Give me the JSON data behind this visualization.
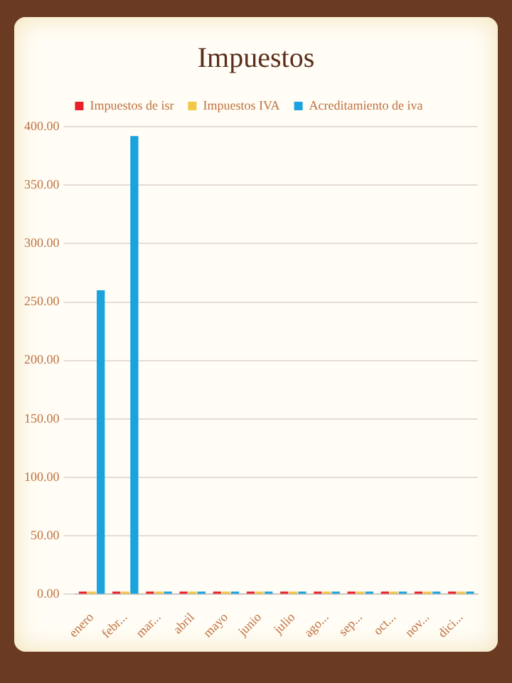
{
  "chart_data": {
    "type": "bar",
    "title": "Impuestos",
    "categories": [
      "enero",
      "febr...",
      "mar...",
      "abril",
      "mayo",
      "junio",
      "julio",
      "ago...",
      "sep...",
      "oct...",
      "nov...",
      "dici..."
    ],
    "series": [
      {
        "name": "Impuestos de isr",
        "color": "#e8202a",
        "values": [
          0,
          0,
          0,
          0,
          0,
          0,
          0,
          0,
          0,
          0,
          0,
          0
        ]
      },
      {
        "name": "Impuestos IVA",
        "color": "#f2c744",
        "values": [
          0,
          0,
          0,
          0,
          0,
          0,
          0,
          0,
          0,
          0,
          0,
          0
        ]
      },
      {
        "name": "Acreditamiento de iva",
        "color": "#1aa3dc",
        "values": [
          260,
          392,
          0,
          0,
          0,
          0,
          0,
          0,
          0,
          0,
          0,
          0
        ]
      }
    ],
    "ylim": [
      0,
      400
    ],
    "yticks": [
      {
        "value": 0,
        "label": "0.00"
      },
      {
        "value": 50,
        "label": "50.00"
      },
      {
        "value": 100,
        "label": "100.00"
      },
      {
        "value": 150,
        "label": "150.00"
      },
      {
        "value": 200,
        "label": "200.00"
      },
      {
        "value": 250,
        "label": "250.00"
      },
      {
        "value": 300,
        "label": "300.00"
      },
      {
        "value": 350,
        "label": "350.00"
      },
      {
        "value": 400,
        "label": "400.00"
      }
    ],
    "grid": "y",
    "legend": "top"
  }
}
